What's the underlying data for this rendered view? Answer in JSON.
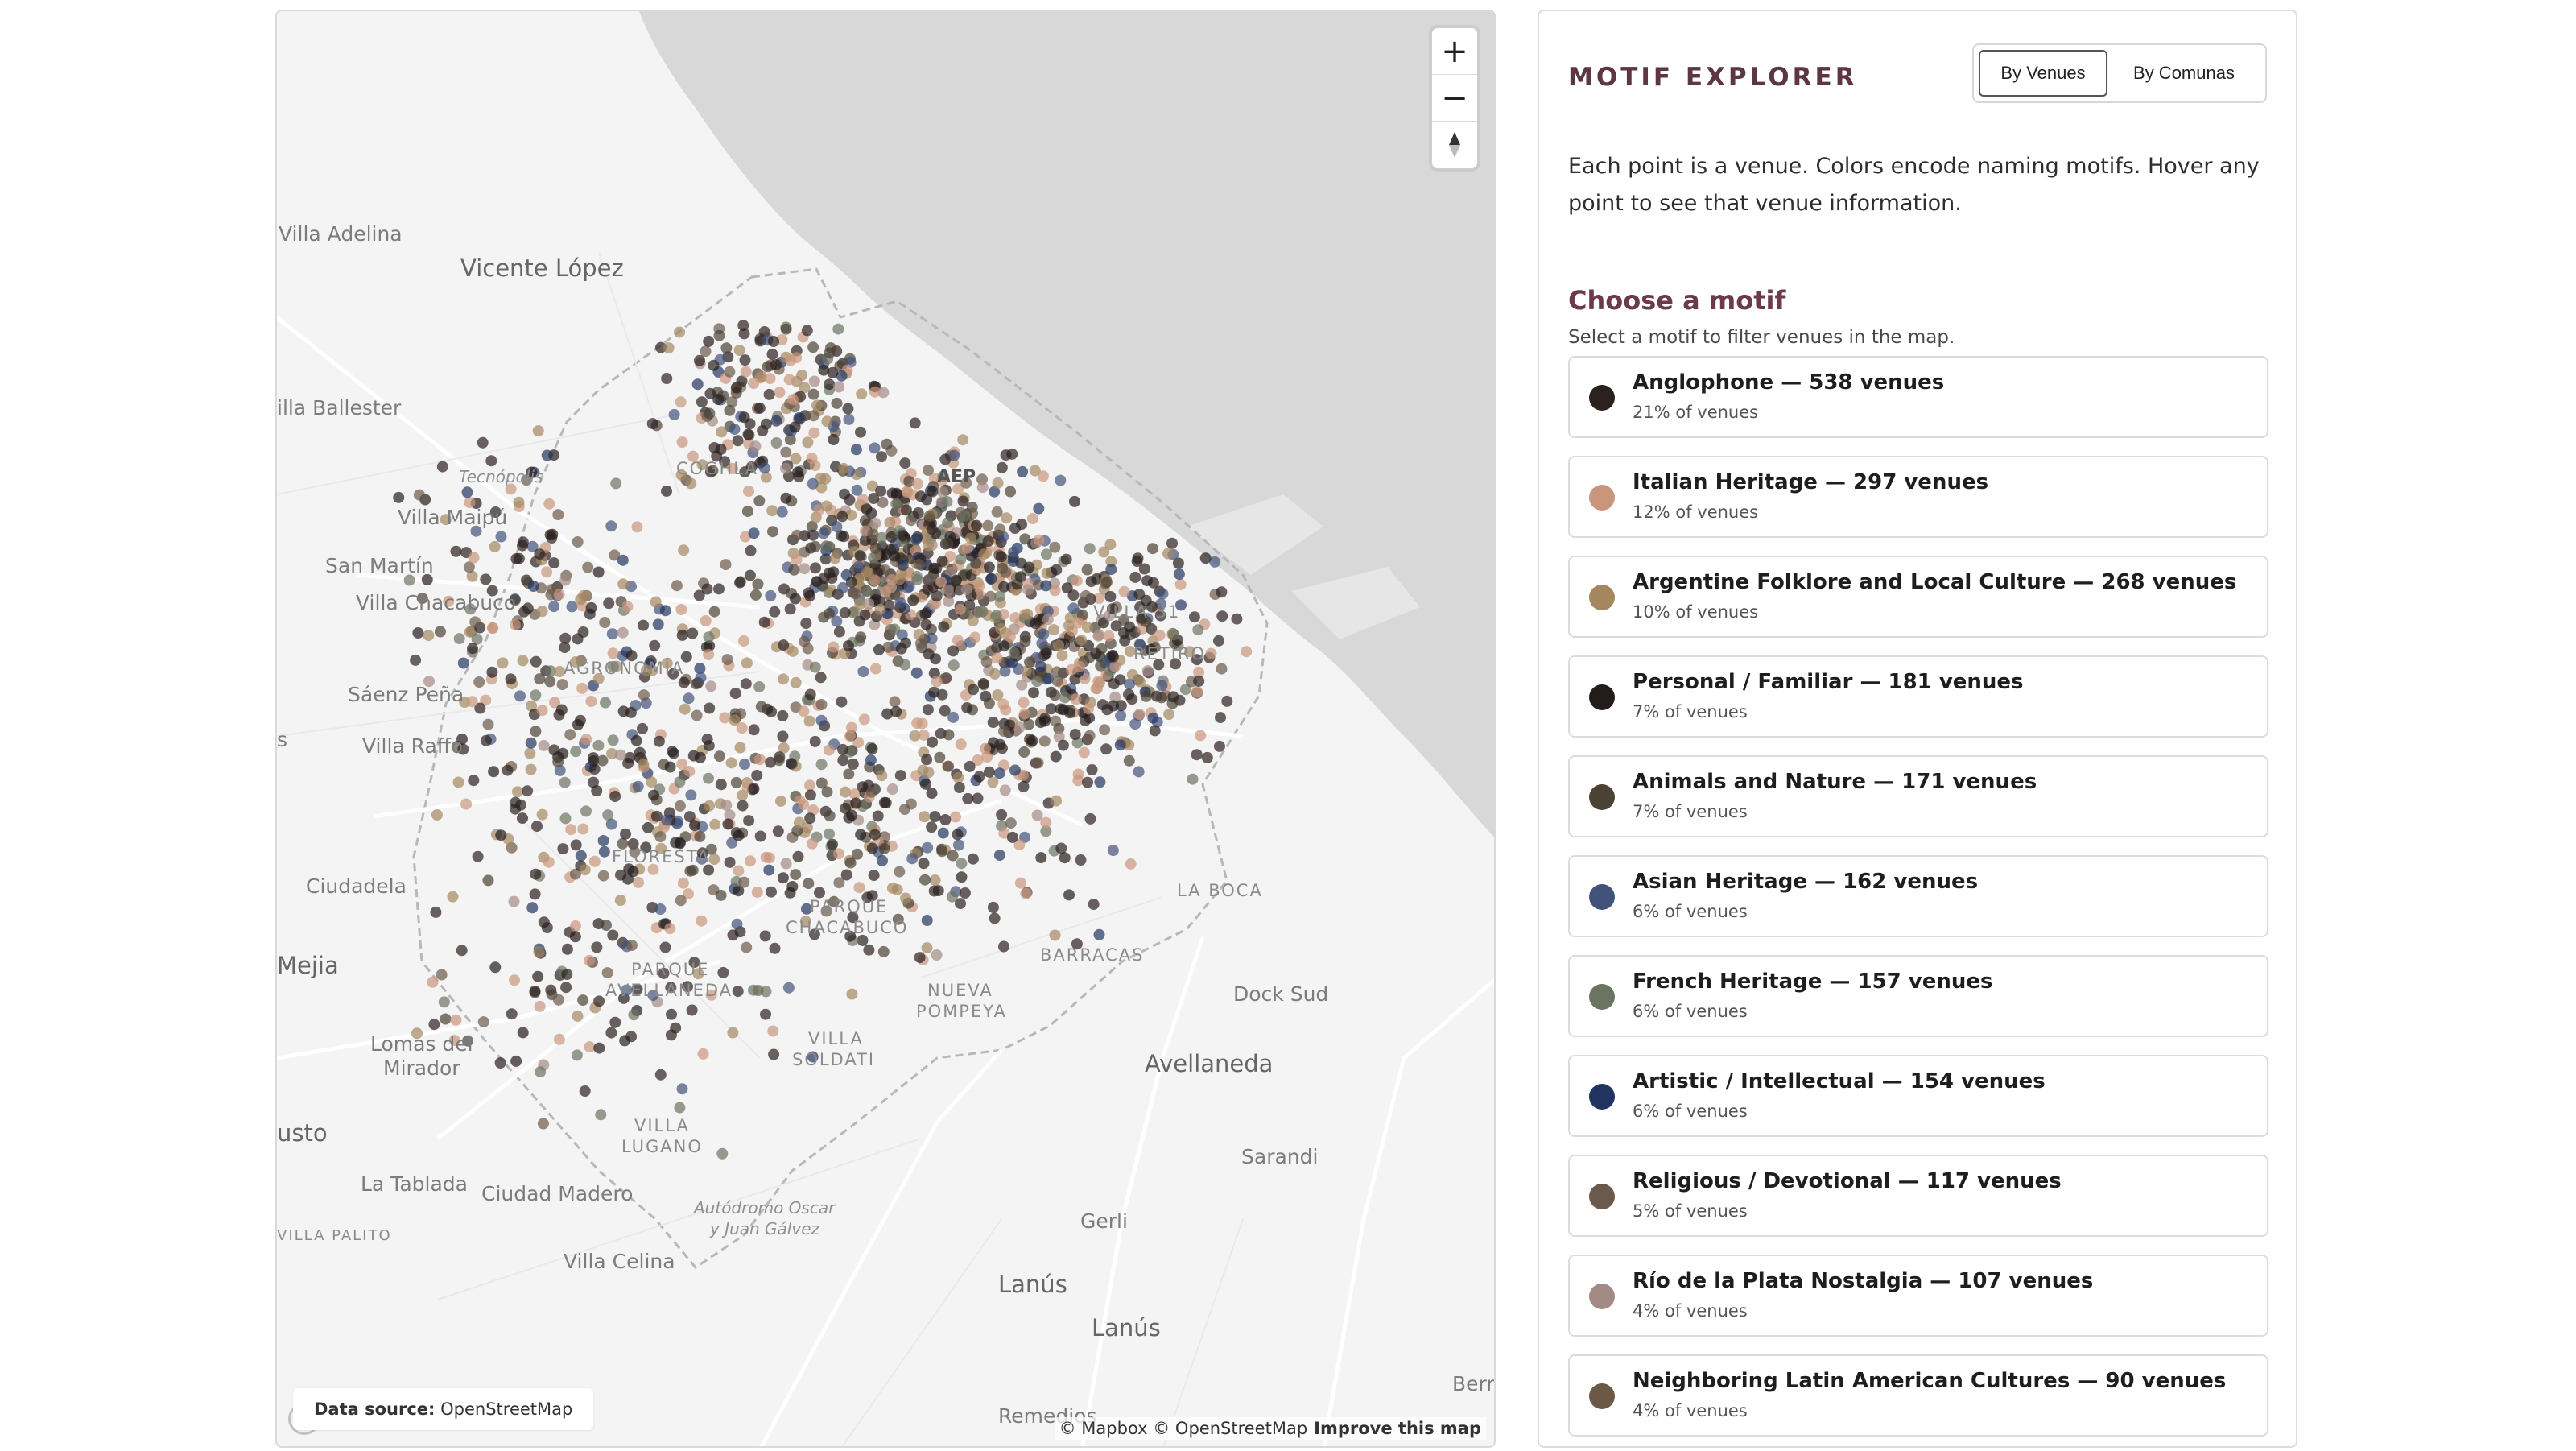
{
  "map": {
    "zoom_in_label": "+",
    "zoom_out_label": "−",
    "compass_icon": "compass-icon",
    "data_source_label": "Data source:",
    "data_source_value": "OpenStreetMap",
    "attribution": "© Mapbox © OpenStreetMap",
    "improve_label": "Improve this map",
    "places": {
      "villa_adelina": "Villa Adelina",
      "vicente_lopez": "Vicente López",
      "villa_ballester": "illa Ballester",
      "tecnopolis": "Tecnópolis",
      "villa_maipu": "Villa Maipú",
      "san_martin": "San Martín",
      "villa_chacabuco": "Villa Chacabuco",
      "saenz_pena": "Sáenz Peña",
      "villa_raffo": "Villa Raffo",
      "s": "s",
      "ciudadela": "Ciudadela",
      "mejia": "Mejia",
      "lomas_del_mirador_1": "Lomas del",
      "lomas_del_mirador_2": "Mirador",
      "justo": "usto",
      "la_tablada": "La Tablada",
      "ciudad_madero": "Ciudad Madero",
      "villa_palito": "VILLA PALITO",
      "villa_celina": "Villa Celina",
      "autodromo_1": "Autódromo Oscar",
      "autodromo_2": "y Juan Gálvez",
      "lanus_1": "Lanús",
      "lanus_2": "Lanús",
      "remedios": "Remedios",
      "gerli": "Gerli",
      "sarandi": "Sarandi",
      "avellaneda": "Avellaneda",
      "dock_sud": "Dock Sud",
      "berr": "Berr",
      "aep": "AEP",
      "coghlan": "COGHLA",
      "agronomia": "AGRONOMÍA",
      "floresta": "FLORESTA",
      "parque_chacabuco_1": "PARQUE",
      "parque_chacabuco_2": "CHACABUCO",
      "parque_avellaneda_1": "PARQUE",
      "parque_avellaneda_2": "AVELLANEDA",
      "nueva_pompeya_1": "NUEVA",
      "nueva_pompeya_2": "POMPEYA",
      "barracas": "BARRACAS",
      "la_boca": "LA BOCA",
      "villa_soldati_1": "VILLA",
      "villa_soldati_2": "SOLDATI",
      "villa_lugano_1": "VILLA",
      "villa_lugano_2": "LUGANO",
      "villa_31": "VILLA 31",
      "retiro": "RETIRO"
    }
  },
  "panel": {
    "title": "MOTIF EXPLORER",
    "toggle": {
      "venues": "By Venues",
      "comunas": "By Comunas",
      "active": "By Venues"
    },
    "description": "Each point is a venue. Colors encode naming motifs. Hover any point to see that venue information.",
    "choose_title": "Choose a motif",
    "choose_subtitle": "Select a motif to filter venues in the map.",
    "motifs": [
      {
        "label": "Anglophone — 538 venues",
        "pct": "21% of venues",
        "color": "#2b211f"
      },
      {
        "label": "Italian Heritage — 297 venues",
        "pct": "12% of venues",
        "color": "#c9967c"
      },
      {
        "label": "Argentine Folklore and Local Culture — 268 venues",
        "pct": "10% of venues",
        "color": "#a4875f"
      },
      {
        "label": "Personal / Familiar — 181 venues",
        "pct": "7% of venues",
        "color": "#231c1b"
      },
      {
        "label": "Animals and Nature — 171 venues",
        "pct": "7% of venues",
        "color": "#4a4235"
      },
      {
        "label": "Asian Heritage — 162 venues",
        "pct": "6% of venues",
        "color": "#41537b"
      },
      {
        "label": "French Heritage — 157 venues",
        "pct": "6% of venues",
        "color": "#6b7361"
      },
      {
        "label": "Artistic / Intellectual — 154 venues",
        "pct": "6% of venues",
        "color": "#223460"
      },
      {
        "label": "Religious / Devotional — 117 venues",
        "pct": "5% of venues",
        "color": "#6b5a4c"
      },
      {
        "label": "Río de la Plata Nostalgia — 107 venues",
        "pct": "4% of venues",
        "color": "#a38a85"
      },
      {
        "label": "Neighboring Latin American Cultures — 90 venues",
        "pct": "4% of venues",
        "color": "#6b5847"
      }
    ]
  }
}
